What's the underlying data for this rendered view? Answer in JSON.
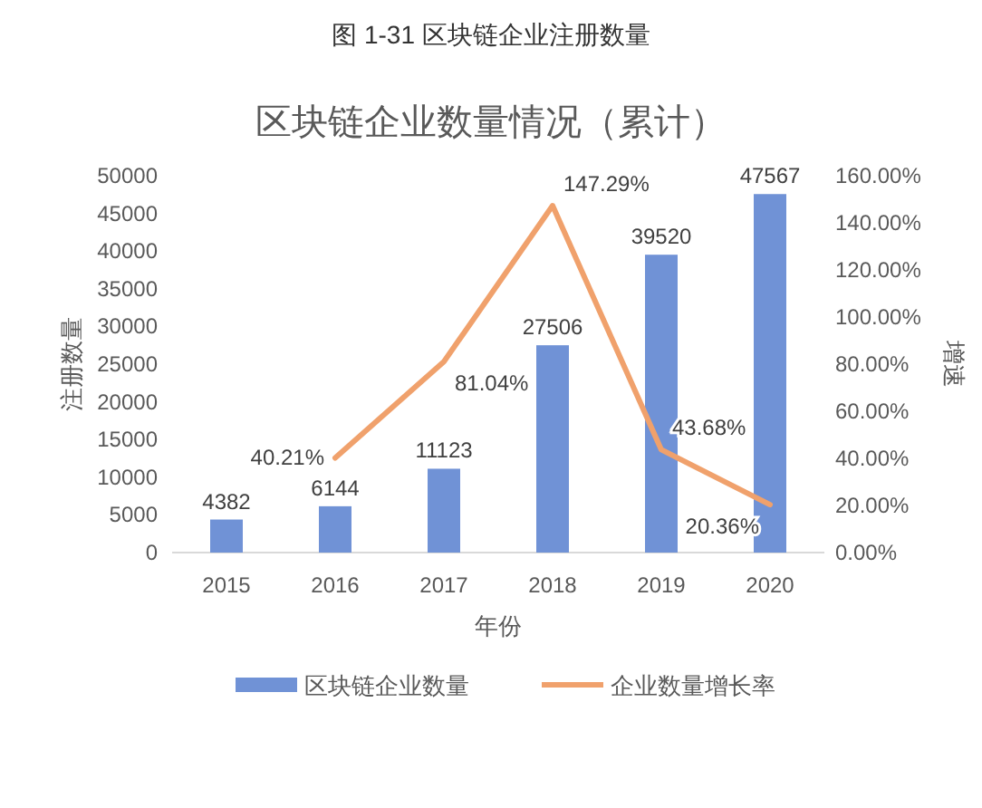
{
  "chart_data": {
    "type": "bar",
    "title": "图 1-31  区块链企业注册数量",
    "subtitle": "区块链企业数量情况（累计）",
    "xlabel": "年份",
    "ylabel": "注册数量",
    "y2label": "增速",
    "categories": [
      "2015",
      "2016",
      "2017",
      "2018",
      "2019",
      "2020"
    ],
    "series": [
      {
        "name": "区块链企业数量",
        "color": "#7092d6",
        "values": [
          4382,
          6144,
          11123,
          27506,
          39520,
          47567
        ]
      },
      {
        "name": "企业数量增长率",
        "type": "line",
        "axis": "y2",
        "color": "#f0a16c",
        "values": [
          null,
          40.21,
          81.04,
          147.29,
          43.68,
          20.36
        ],
        "value_labels": [
          null,
          "40.21%",
          "81.04%",
          "147.29%",
          "43.68%",
          "20.36%"
        ]
      }
    ],
    "ylim": [
      0,
      50000
    ],
    "yticks": [
      0,
      5000,
      10000,
      15000,
      20000,
      25000,
      30000,
      35000,
      40000,
      45000,
      50000
    ],
    "y2lim": [
      0,
      160
    ],
    "y2ticks": [
      {
        "value": 0,
        "label": "0.00%"
      },
      {
        "value": 20,
        "label": "20.00%"
      },
      {
        "value": 40,
        "label": "40.00%"
      },
      {
        "value": 60,
        "label": "60.00%"
      },
      {
        "value": 80,
        "label": "80.00%"
      },
      {
        "value": 100,
        "label": "100.00%"
      },
      {
        "value": 120,
        "label": "120.00%"
      },
      {
        "value": 140,
        "label": "140.00%"
      },
      {
        "value": 160,
        "label": "160.00%"
      }
    ],
    "data_labels": true,
    "grid": false,
    "legend": "bottom",
    "marker": "none"
  }
}
